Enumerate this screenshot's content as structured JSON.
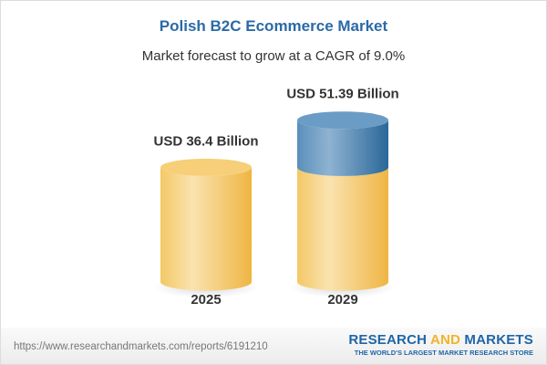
{
  "title": "Polish B2C Ecommerce Market",
  "subtitle": "Market forecast to grow at a CAGR of 9.0%",
  "chart_data": {
    "type": "bar",
    "style": "3d-cylinder",
    "categories": [
      "2025",
      "2029"
    ],
    "values": [
      36.4,
      51.39
    ],
    "data_labels": [
      "USD 36.4 Billion",
      "USD 51.39 Billion"
    ],
    "colors": {
      "base": "#f5c660",
      "growth": "#4f86b5"
    }
  },
  "footer": {
    "url": "https://www.researchandmarkets.com/reports/6191210",
    "logo_part1": "RESEARCH ",
    "logo_and": "AND",
    "logo_part2": " MARKETS",
    "logo_tagline": "THE WORLD'S LARGEST MARKET RESEARCH STORE"
  }
}
